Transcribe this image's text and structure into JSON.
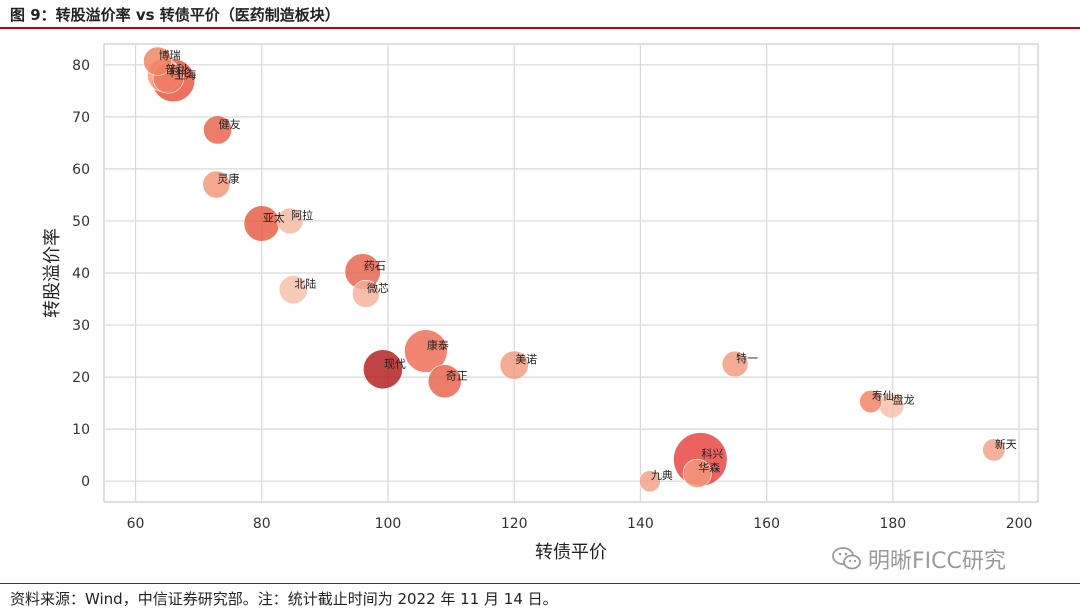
{
  "header": {
    "title": "图 9：转股溢价率 vs 转债平价（医药制造板块）"
  },
  "footer": {
    "source": "资料来源：Wind，中信证券研究部。注：统计截止时间为 2022 年 11 月 14 日。"
  },
  "watermark": {
    "text": "明晰FICC研究",
    "icon": "wechat-icon"
  },
  "chart_data": {
    "type": "scatter",
    "title": "",
    "xlabel": "转债平价",
    "ylabel": "转股溢价率",
    "xlim": [
      55,
      203
    ],
    "ylim": [
      -4,
      84
    ],
    "xticks": [
      60,
      80,
      100,
      120,
      140,
      160,
      180,
      200
    ],
    "yticks": [
      0,
      10,
      20,
      30,
      40,
      50,
      60,
      70,
      80
    ],
    "grid": true,
    "bubble_size_legend": false,
    "points": [
      {
        "label": "博瑞",
        "x": 63.5,
        "y": 80.7,
        "size": 1.2,
        "color": "#f08060"
      },
      {
        "label": "普利",
        "x": 64.5,
        "y": 78.0,
        "size": 1.6,
        "color": "#f49a78"
      },
      {
        "label": "科伦",
        "x": 65.2,
        "y": 77.5,
        "size": 1.4,
        "color": "#ee7a62"
      },
      {
        "label": "上海",
        "x": 66.0,
        "y": 77.0,
        "size": 2.4,
        "color": "#e8503a"
      },
      {
        "label": "健友",
        "x": 73.0,
        "y": 67.5,
        "size": 1.2,
        "color": "#e8604a"
      },
      {
        "label": "灵康",
        "x": 72.8,
        "y": 57.0,
        "size": 1.1,
        "color": "#f29578"
      },
      {
        "label": "亚太",
        "x": 80.0,
        "y": 49.5,
        "size": 1.8,
        "color": "#e85a42"
      },
      {
        "label": "阿拉",
        "x": 84.5,
        "y": 50.0,
        "size": 1.0,
        "color": "#f4b8a0"
      },
      {
        "label": "药石",
        "x": 96.0,
        "y": 40.3,
        "size": 1.8,
        "color": "#e8604a"
      },
      {
        "label": "北陆",
        "x": 85.0,
        "y": 36.8,
        "size": 1.2,
        "color": "#f6c0a8"
      },
      {
        "label": "微芯",
        "x": 96.5,
        "y": 36.0,
        "size": 1.1,
        "color": "#f4b098"
      },
      {
        "label": "康泰",
        "x": 106.0,
        "y": 25.0,
        "size": 2.4,
        "color": "#ee6a50"
      },
      {
        "label": "美诺",
        "x": 120.0,
        "y": 22.3,
        "size": 1.2,
        "color": "#f29a7c"
      },
      {
        "label": "现代",
        "x": 99.2,
        "y": 21.5,
        "size": 2.1,
        "color": "#b31b1b"
      },
      {
        "label": "奇正",
        "x": 109.0,
        "y": 19.2,
        "size": 1.6,
        "color": "#e8604a"
      },
      {
        "label": "特一",
        "x": 155.0,
        "y": 22.5,
        "size": 1.0,
        "color": "#f29a7c"
      },
      {
        "label": "寿仙",
        "x": 176.5,
        "y": 15.3,
        "size": 0.7,
        "color": "#f08060"
      },
      {
        "label": "盘龙",
        "x": 179.8,
        "y": 14.5,
        "size": 0.9,
        "color": "#f6c0a8"
      },
      {
        "label": "新天",
        "x": 196.0,
        "y": 6.0,
        "size": 0.7,
        "color": "#f4a088"
      },
      {
        "label": "九典",
        "x": 141.5,
        "y": 0.0,
        "size": 0.6,
        "color": "#f4a088"
      },
      {
        "label": "科兴",
        "x": 149.5,
        "y": 4.2,
        "size": 3.3,
        "color": "#e6403a"
      },
      {
        "label": "华森",
        "x": 149.0,
        "y": 1.5,
        "size": 1.2,
        "color": "#f29a7c"
      }
    ]
  }
}
